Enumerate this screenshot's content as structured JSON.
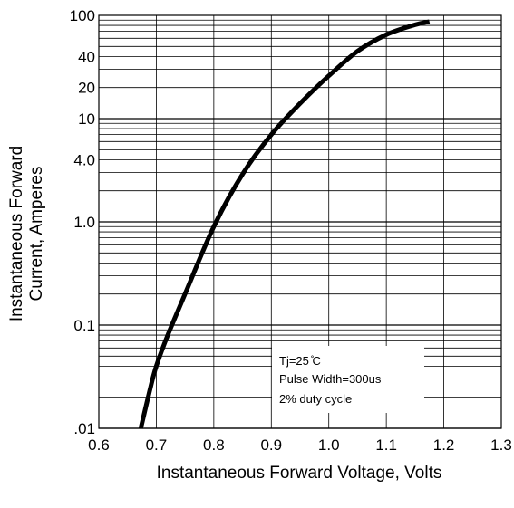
{
  "chart_data": {
    "type": "line",
    "title": "",
    "xlabel": "Instantaneous Forward Voltage, Volts",
    "ylabel_line1": "Instantaneous Forward",
    "ylabel_line2": "Current, Amperes",
    "xlim": [
      0.6,
      1.3
    ],
    "ylim": [
      0.01,
      100
    ],
    "yscale": "log",
    "grid": true,
    "x_ticks": [
      "0.6",
      "0.7",
      "0.8",
      "0.9",
      "1.0",
      "1.1",
      "1.2",
      "1.3"
    ],
    "y_ticks": [
      {
        "value": 100,
        "label": "100"
      },
      {
        "value": 40,
        "label": "40"
      },
      {
        "value": 20,
        "label": "20"
      },
      {
        "value": 10,
        "label": "10"
      },
      {
        "value": 4,
        "label": "4.0"
      },
      {
        "value": 1,
        "label": "1.0"
      },
      {
        "value": 0.1,
        "label": "0.1"
      },
      {
        "value": 0.01,
        "label": ".01"
      }
    ],
    "series": [
      {
        "x": [
          0.673,
          0.69,
          0.7,
          0.72,
          0.75,
          0.8,
          0.85,
          0.9,
          0.95,
          1.0,
          1.05,
          1.1,
          1.15,
          1.175
        ],
        "y": [
          0.01,
          0.025,
          0.04,
          0.08,
          0.2,
          0.9,
          2.9,
          7.0,
          14.0,
          26.0,
          45.0,
          65.0,
          81.0,
          87.0
        ]
      }
    ],
    "annotations": [
      "Tj=25 ̊C",
      "Pulse Width=300us",
      "2% duty cycle"
    ],
    "colors": {
      "curve": "#000000",
      "grid": "#000000"
    }
  }
}
